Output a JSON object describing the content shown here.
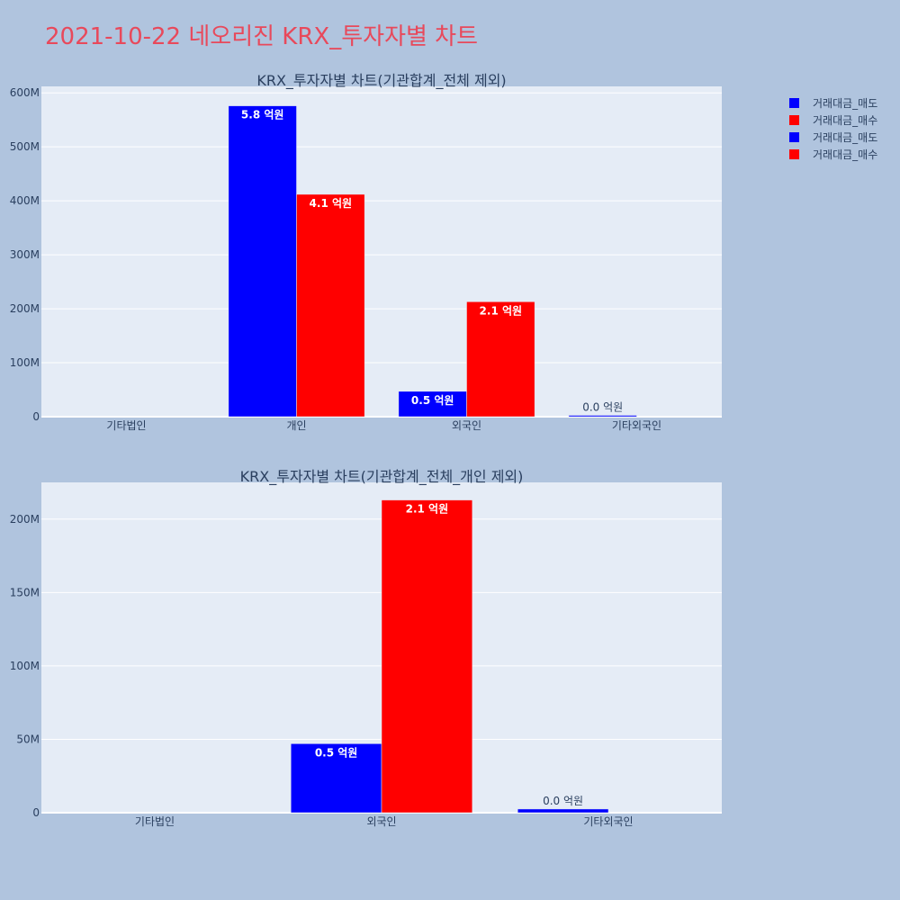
{
  "page": {
    "title": "2021-10-22 네오리진 KRX_투자자별 차트",
    "title_color": "#e8495b",
    "background": "#b0c4de",
    "plot_background": "#e5ecf6"
  },
  "legend": {
    "position": "top-right",
    "entries": [
      {
        "label": "거래대금_매도",
        "color": "#0000ff"
      },
      {
        "label": "거래대금_매수",
        "color": "#ff0000"
      },
      {
        "label": "거래대금_매도",
        "color": "#0000ff"
      },
      {
        "label": "거래대금_매수",
        "color": "#ff0000"
      }
    ]
  },
  "chart_data": [
    {
      "type": "bar",
      "title": "KRX_투자자별 차트(기관합계_전체 제외)",
      "categories": [
        "기타법인",
        "개인",
        "외국인",
        "기타외국인"
      ],
      "series": [
        {
          "name": "거래대금_매도",
          "color": "#0000ff",
          "values": [
            0,
            576000000,
            47000000,
            2500000
          ],
          "labels": [
            "",
            "5.8 억원",
            "0.5 억원",
            "0.0 억원"
          ]
        },
        {
          "name": "거래대금_매수",
          "color": "#ff0000",
          "values": [
            0,
            412000000,
            213000000,
            0
          ],
          "labels": [
            "",
            "4.1 억원",
            "2.1 억원",
            ""
          ]
        }
      ],
      "ylim": [
        0,
        612000000
      ],
      "yticks": [
        0,
        100000000,
        200000000,
        300000000,
        400000000,
        500000000,
        600000000
      ],
      "ytick_labels": [
        "0",
        "100M",
        "200M",
        "300M",
        "400M",
        "500M",
        "600M"
      ],
      "grid": true
    },
    {
      "type": "bar",
      "title": "KRX_투자자별 차트(기관합계_전체_개인 제외)",
      "categories": [
        "기타법인",
        "외국인",
        "기타외국인"
      ],
      "series": [
        {
          "name": "거래대금_매도",
          "color": "#0000ff",
          "values": [
            0,
            47000000,
            2500000
          ],
          "labels": [
            "",
            "0.5 억원",
            "0.0 억원"
          ]
        },
        {
          "name": "거래대금_매수",
          "color": "#ff0000",
          "values": [
            0,
            213000000,
            0
          ],
          "labels": [
            "",
            "2.1 억원",
            ""
          ]
        }
      ],
      "ylim": [
        0,
        225000000
      ],
      "yticks": [
        0,
        50000000,
        100000000,
        150000000,
        200000000
      ],
      "ytick_labels": [
        "0",
        "50M",
        "100M",
        "150M",
        "200M"
      ],
      "grid": true
    }
  ]
}
